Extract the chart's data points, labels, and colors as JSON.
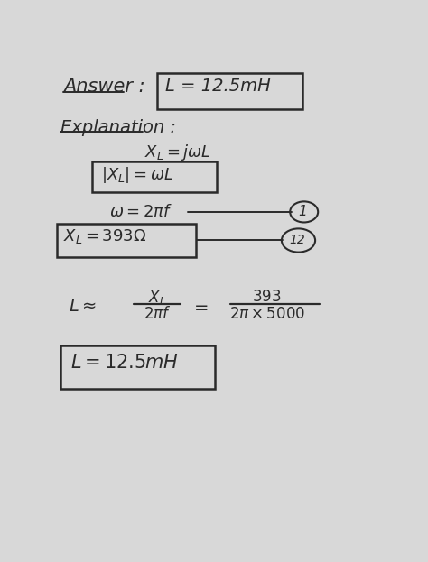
{
  "bg_color": "#d8d8d8",
  "font_color": "#2a2a2a",
  "answer_label": "Answer :",
  "answer_box": "L = 12.5mH",
  "explanation": "Explanation :",
  "eq1": "$X_L = j\\omega L$",
  "box_eq1": "$|X_L| = \\omega L$",
  "eq2": "$\\omega = 2\\pi f$",
  "box_eq2": "$X_L = 393\\Omega$",
  "lhs": "$L  \\approx$",
  "frac1_num": "$X_L$",
  "frac1_den": "$2\\pi f$",
  "equals": "$=$",
  "frac2_num": "$393$",
  "frac2_den": "$2\\pi \\times 5000$",
  "final_box": "$L  = 12.5mH$",
  "circ1": "1",
  "circ2": "12"
}
